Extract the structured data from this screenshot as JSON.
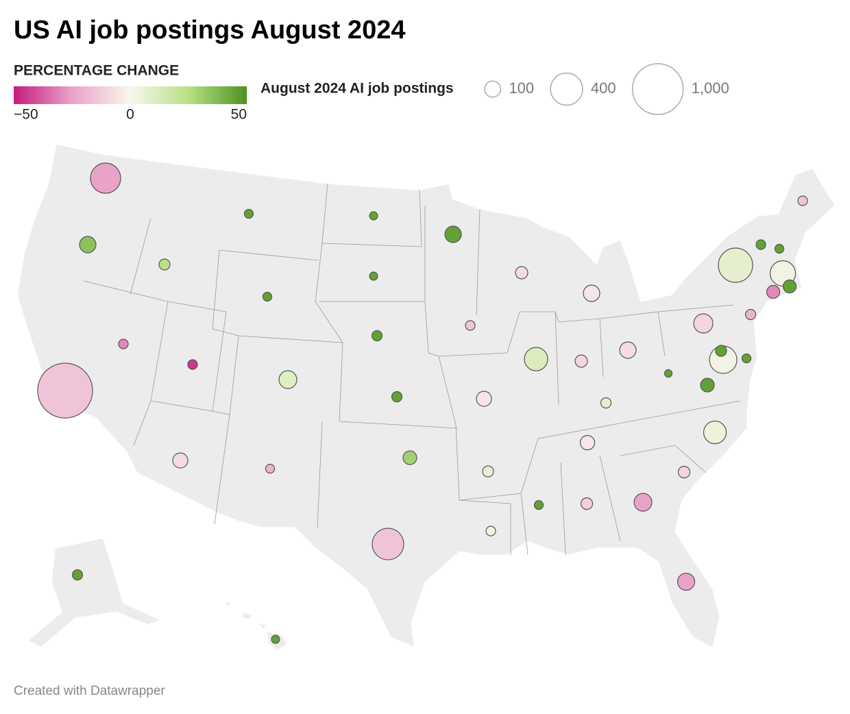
{
  "chart_data": {
    "type": "bubble-map",
    "title": "US AI job postings August 2024",
    "color_legend_title": "PERCENTAGE CHANGE",
    "size_legend_title": "August 2024 AI job postings",
    "credit": "Created with Datawrapper",
    "colorlim": [
      -50,
      50
    ],
    "colorticks": [
      {
        "value": -50,
        "label": "−50"
      },
      0,
      50
    ],
    "color_scale": [
      "#c51b7d",
      "#e9a3c9",
      "#faf6ee",
      "#b8e186",
      "#4d9221"
    ],
    "size_ticks": [
      100,
      400,
      {
        "value": 1000,
        "label": "1,000"
      }
    ],
    "size_max": 1000,
    "changes": [
      -25,
      35,
      -15,
      -30,
      25,
      45,
      45,
      -45,
      10,
      -8,
      -20,
      45,
      45,
      45,
      45,
      30,
      -15,
      45,
      -15,
      -5,
      8,
      3,
      -8,
      12,
      -5,
      -10,
      -8,
      8,
      -5,
      45,
      -12,
      -25,
      -25,
      -10,
      5,
      45,
      45,
      45,
      3,
      45,
      -10,
      -20,
      8,
      -30,
      45,
      3,
      45,
      45,
      -15,
      45,
      45
    ],
    "values": [
      354,
      105,
      1170,
      36,
      47,
      31,
      31,
      36,
      123,
      88,
      31,
      26,
      26,
      41,
      41,
      73,
      386,
      105,
      36,
      88,
      47,
      36,
      59,
      211,
      105,
      59,
      105,
      41,
      81,
      31,
      53,
      123,
      114,
      53,
      199,
      73,
      22,
      47,
      292,
      31,
      143,
      41,
      457,
      66,
      66,
      250,
      36,
      31,
      36,
      41,
      26
    ]
  }
}
